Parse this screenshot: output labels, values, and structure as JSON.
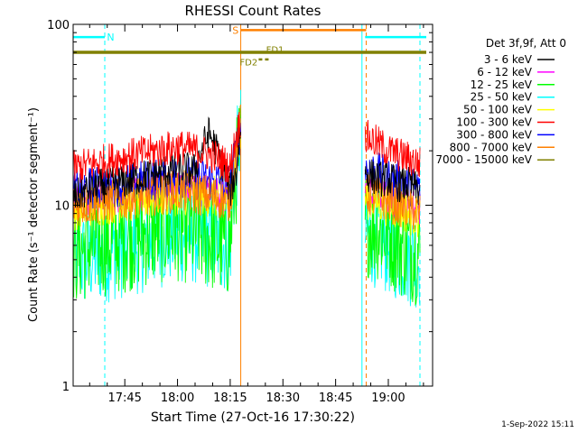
{
  "chart_data": {
    "type": "line",
    "title": "RHESSI Count Rates",
    "xlabel": "Start Time (27-Oct-16 17:30:22)",
    "ylabel": "Count Rate (s⁻¹ detector segment⁻¹)",
    "yscale": "log",
    "ylim": [
      1,
      100
    ],
    "xlim": [
      17.505,
      19.21
    ],
    "x_ticks": [
      {
        "value": 17.75,
        "label": "17:45"
      },
      {
        "value": 18.0,
        "label": "18:00"
      },
      {
        "value": 18.25,
        "label": "18:15"
      },
      {
        "value": 18.5,
        "label": "18:30"
      },
      {
        "value": 18.75,
        "label": "18:45"
      },
      {
        "value": 19.0,
        "label": "19:00"
      }
    ],
    "y_ticks": [
      {
        "value": 1,
        "label": "1"
      },
      {
        "value": 10,
        "label": "10"
      },
      {
        "value": 100,
        "label": "100"
      }
    ],
    "legend": {
      "header": "Det 3f,9f, Att 0",
      "placement": "right"
    },
    "series": [
      {
        "name": "3 - 6 keV",
        "color": "#000000",
        "segments": [
          {
            "x": [
              17.505,
              17.6,
              17.75,
              17.9,
              18.0,
              18.08,
              18.15,
              18.2,
              18.25,
              18.28,
              18.3
            ],
            "y": [
              11,
              12.5,
              13.5,
              15,
              16,
              15.5,
              25,
              18,
              12,
              15,
              27
            ]
          },
          {
            "x": [
              18.89,
              18.95,
              19.0,
              19.05,
              19.1,
              19.15
            ],
            "y": [
              15,
              14,
              14,
              13,
              13,
              12
            ]
          }
        ]
      },
      {
        "name": "6 - 12 keV",
        "color": "#ff00ff",
        "segments": [
          {
            "x": [
              17.505,
              17.6,
              17.75,
              17.9,
              18.0,
              18.1,
              18.2,
              18.25,
              18.3
            ],
            "y": [
              10.5,
              11,
              11.5,
              12,
              12.5,
              12.5,
              11.5,
              11,
              26
            ]
          },
          {
            "x": [
              18.89,
              18.95,
              19.0,
              19.05,
              19.1,
              19.15
            ],
            "y": [
              12,
              11.5,
              11,
              10.5,
              10,
              9.5
            ]
          }
        ]
      },
      {
        "name": "12 - 25 keV",
        "color": "#00ff00",
        "segments": [
          {
            "x": [
              17.505,
              17.6,
              17.75,
              17.9,
              18.0,
              18.1,
              18.2,
              18.25,
              18.3
            ],
            "y": [
              5.5,
              6,
              6.5,
              7.2,
              7.5,
              7,
              6.2,
              6,
              22
            ]
          },
          {
            "x": [
              18.89,
              18.95,
              19.0,
              19.05,
              19.1,
              19.15
            ],
            "y": [
              8,
              7.5,
              7,
              6.2,
              5.8,
              5.5
            ]
          }
        ]
      },
      {
        "name": "25 - 50 keV",
        "color": "#00ffff",
        "segments": [
          {
            "x": [
              17.505,
              17.6,
              17.75,
              17.9,
              18.0,
              18.1,
              18.2,
              18.25,
              18.3
            ],
            "y": [
              4.8,
              5.2,
              5.8,
              6.5,
              7,
              6.8,
              6.2,
              6,
              25
            ]
          },
          {
            "x": [
              18.89,
              18.95,
              19.0,
              19.05,
              19.1,
              19.15
            ],
            "y": [
              7,
              6.5,
              6,
              5.5,
              5.2,
              5
            ]
          }
        ]
      },
      {
        "name": "50 - 100 keV",
        "color": "#ffff00",
        "segments": [
          {
            "x": [
              17.505,
              17.6,
              17.75,
              17.9,
              18.0,
              18.1,
              18.2,
              18.25,
              18.3
            ],
            "y": [
              9.5,
              10,
              10.5,
              11,
              11.5,
              11.5,
              11,
              10.5,
              24
            ]
          },
          {
            "x": [
              18.89,
              18.95,
              19.0,
              19.05,
              19.1,
              19.15
            ],
            "y": [
              11,
              10.5,
              10,
              9.5,
              9,
              8.5
            ]
          }
        ]
      },
      {
        "name": "100 - 300 keV",
        "color": "#ff0000",
        "segments": [
          {
            "x": [
              17.505,
              17.6,
              17.75,
              17.9,
              18.0,
              18.1,
              18.2,
              18.25,
              18.3
            ],
            "y": [
              16,
              17,
              18.5,
              20,
              21,
              20,
              18,
              16,
              30
            ]
          },
          {
            "x": [
              18.89,
              18.95,
              19.0,
              19.05,
              19.1,
              19.15
            ],
            "y": [
              24,
              22,
              20,
              19,
              18,
              17
            ]
          }
        ]
      },
      {
        "name": "300 - 800 keV",
        "color": "#0000ff",
        "segments": [
          {
            "x": [
              17.505,
              17.6,
              17.75,
              17.9,
              18.0,
              18.1,
              18.2,
              18.25,
              18.3
            ],
            "y": [
              12,
              12.5,
              13,
              14,
              14.5,
              14,
              13.5,
              13,
              26
            ]
          },
          {
            "x": [
              18.89,
              18.95,
              19.0,
              19.05,
              19.1,
              19.15
            ],
            "y": [
              16,
              15,
              14,
              13.5,
              13,
              12.5
            ]
          }
        ]
      },
      {
        "name": "800 - 7000 keV",
        "color": "#ff8000",
        "segments": [
          {
            "x": [
              17.505,
              17.6,
              17.75,
              17.9,
              18.0,
              18.1,
              18.2,
              18.25,
              18.3
            ],
            "y": [
              10,
              10.2,
              10.8,
              11.5,
              12,
              11.5,
              11,
              10.5,
              28
            ]
          },
          {
            "x": [
              18.89,
              18.95,
              19.0,
              19.05,
              19.1,
              19.15
            ],
            "y": [
              11.5,
              11,
              10.5,
              10,
              9.5,
              9
            ]
          }
        ]
      },
      {
        "name": "7000 - 15000 keV",
        "color": "#808000",
        "segments": []
      }
    ],
    "annotations": {
      "bars": [
        {
          "label": "N",
          "color": "#00ffff",
          "y": 85,
          "segments": [
            [
              17.505,
              17.655
            ],
            [
              18.89,
              19.18
            ]
          ],
          "label_x": 17.665
        },
        {
          "label": "S",
          "color": "#ff8000",
          "y": 93,
          "segments": [
            [
              18.3,
              18.895
            ]
          ],
          "label_x": 18.26
        },
        {
          "label": "",
          "color": "#808000",
          "y": 70,
          "segments": [
            [
              17.505,
              19.18
            ]
          ]
        }
      ],
      "markers": [
        {
          "label": "FD1",
          "color": "#808000",
          "x": [
            18.36,
            18.415
          ],
          "y": 70,
          "label_x": 18.42,
          "label_y": 73
        },
        {
          "label": "FD2",
          "color": "#808000",
          "x": [
            18.385,
            18.435
          ],
          "y": 64,
          "label_x": 18.295,
          "label_y": 62
        }
      ],
      "vlines": [
        {
          "x": 17.505,
          "color": "#00ffff",
          "style": "solid"
        },
        {
          "x": 17.655,
          "color": "#00ffff",
          "style": "dashed"
        },
        {
          "x": 18.3,
          "color": "#ff8000",
          "style": "solid"
        },
        {
          "x": 18.875,
          "color": "#00ffff",
          "style": "solid"
        },
        {
          "x": 18.895,
          "color": "#ff8000",
          "style": "dashed"
        },
        {
          "x": 19.15,
          "color": "#00ffff",
          "style": "dashed"
        }
      ]
    },
    "timestamp": "1-Sep-2022 15:11"
  }
}
